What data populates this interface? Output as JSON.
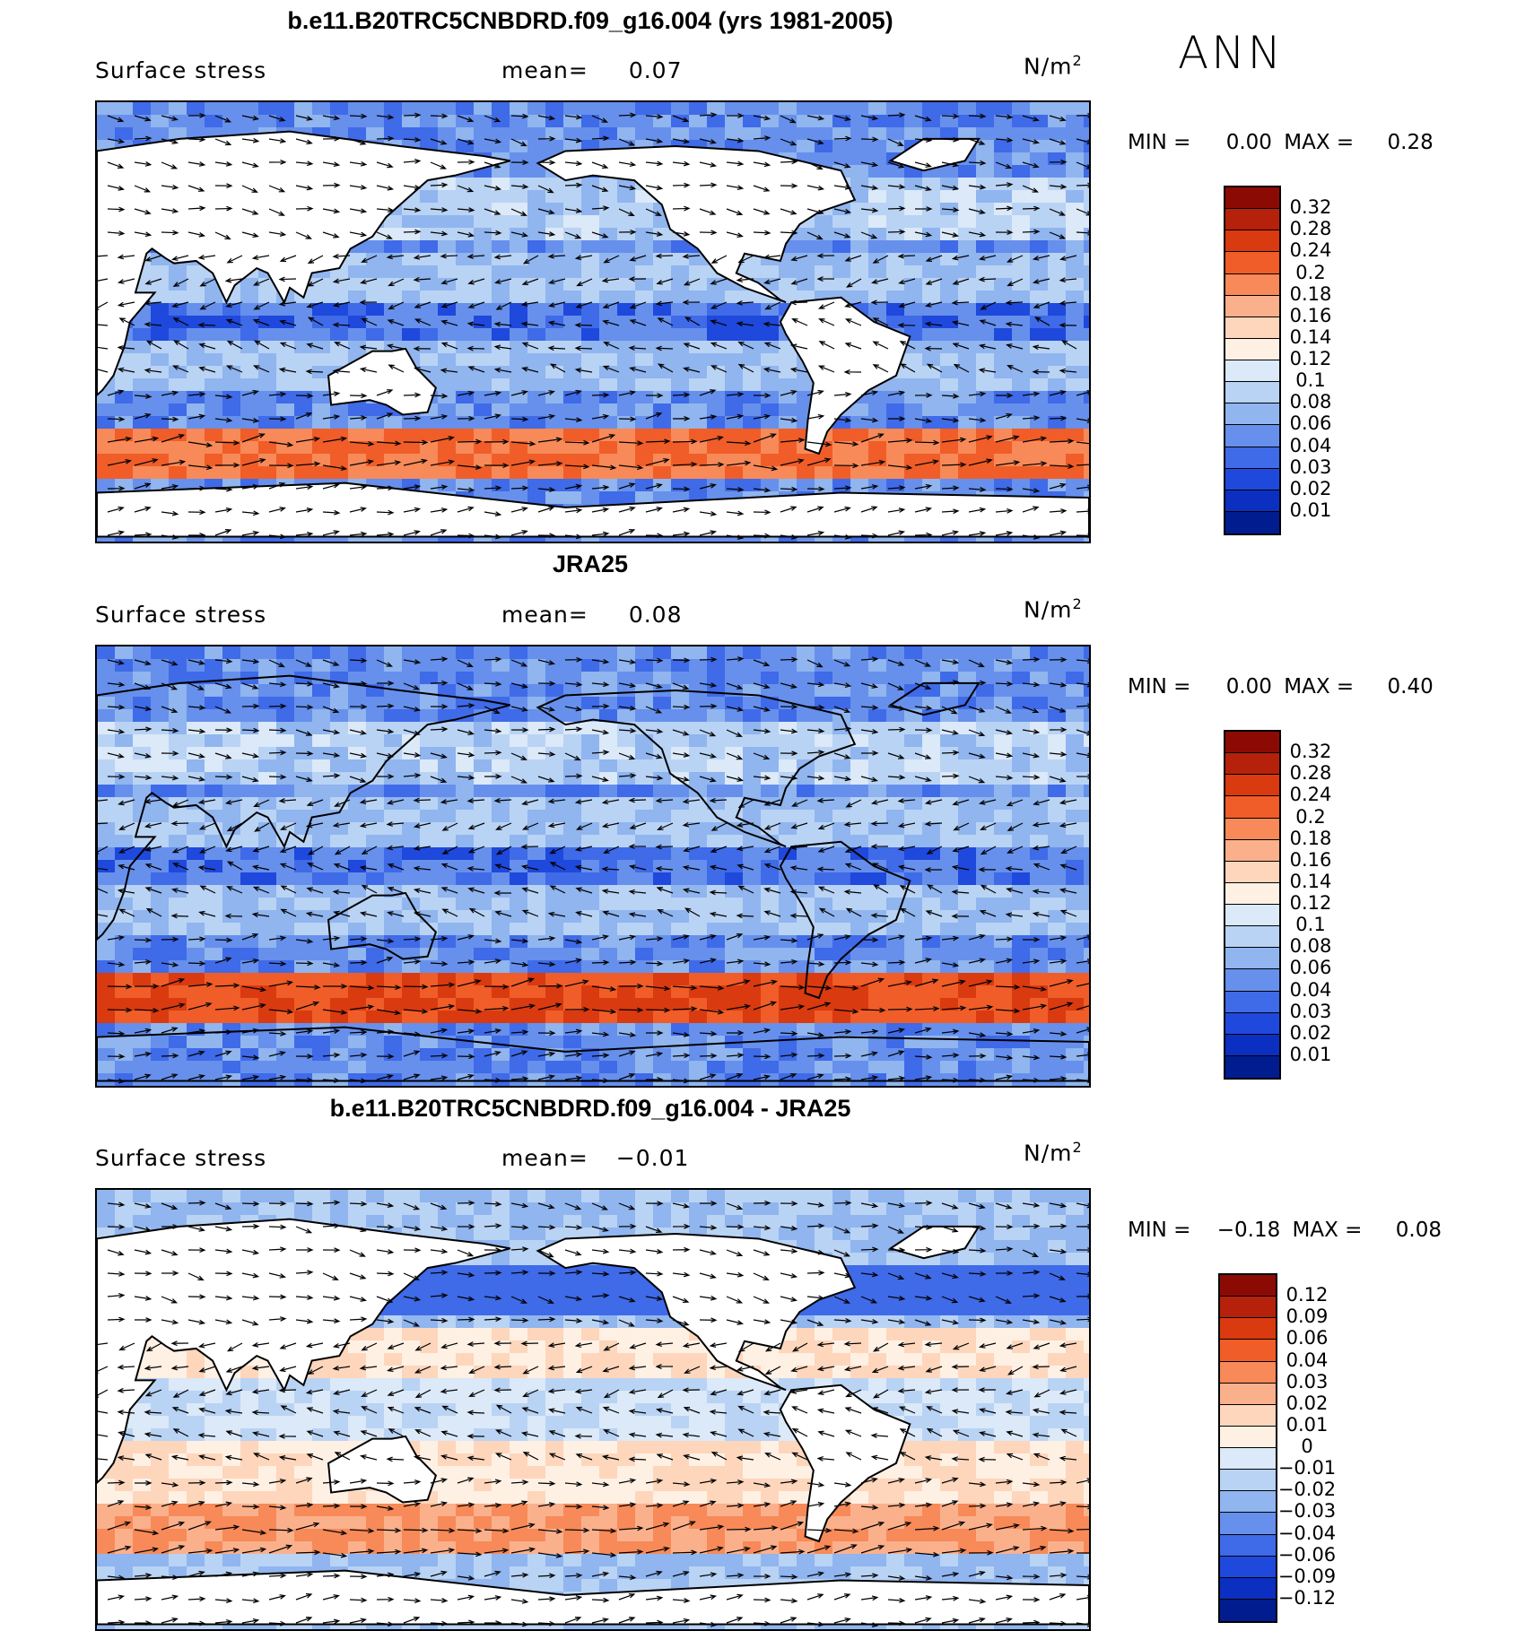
{
  "season": "ANN",
  "panels": [
    {
      "title": "b.e11.B20TRC5CNBDRD.f09_g16.004 (yrs 1981-2005)",
      "variable": "Surface stress",
      "mean_label": "mean=",
      "mean_value": "0.07",
      "units": "N/m",
      "units_exp": "2",
      "min_label": "MIN =",
      "min_value": "0.00",
      "max_label": "MAX =",
      "max_value": "0.28",
      "colorbar_labels": [
        "0.32",
        "0.28",
        "0.24",
        "0.2",
        "0.18",
        "0.16",
        "0.14",
        "0.12",
        "0.1",
        "0.08",
        "0.06",
        "0.04",
        "0.03",
        "0.02",
        "0.01"
      ],
      "colorbar_colors": [
        "#8b0a04",
        "#b5210b",
        "#d93a10",
        "#f05d28",
        "#f78a58",
        "#fbb08c",
        "#fdd6bc",
        "#fff0e4",
        "#dbe9f8",
        "#b9d3f4",
        "#90b5ef",
        "#6690ec",
        "#3f6ae8",
        "#1f48dc",
        "#0b2fc0",
        "#001c8f"
      ],
      "scheme": "pos"
    },
    {
      "title": "JRA25",
      "variable": "Surface stress",
      "mean_label": "mean=",
      "mean_value": "0.08",
      "units": "N/m",
      "units_exp": "2",
      "min_label": "MIN =",
      "min_value": "0.00",
      "max_label": "MAX =",
      "max_value": "0.40",
      "colorbar_labels": [
        "0.32",
        "0.28",
        "0.24",
        "0.2",
        "0.18",
        "0.16",
        "0.14",
        "0.12",
        "0.1",
        "0.08",
        "0.06",
        "0.04",
        "0.03",
        "0.02",
        "0.01"
      ],
      "colorbar_colors": [
        "#8b0a04",
        "#b5210b",
        "#d93a10",
        "#f05d28",
        "#f78a58",
        "#fbb08c",
        "#fdd6bc",
        "#fff0e4",
        "#dbe9f8",
        "#b9d3f4",
        "#90b5ef",
        "#6690ec",
        "#3f6ae8",
        "#1f48dc",
        "#0b2fc0",
        "#001c8f"
      ],
      "scheme": "pos"
    },
    {
      "title": "b.e11.B20TRC5CNBDRD.f09_g16.004 - JRA25",
      "variable": "Surface stress",
      "mean_label": "mean=",
      "mean_value": "−0.01",
      "units": "N/m",
      "units_exp": "2",
      "min_label": "MIN =",
      "min_value": "−0.18",
      "max_label": "MAX =",
      "max_value": "0.08",
      "colorbar_labels": [
        "0.12",
        "0.09",
        "0.06",
        "0.04",
        "0.03",
        "0.02",
        "0.01",
        "0",
        "−0.01",
        "−0.02",
        "−0.03",
        "−0.04",
        "−0.06",
        "−0.09",
        "−0.12"
      ],
      "colorbar_colors": [
        "#8b0a04",
        "#b5210b",
        "#d93a10",
        "#f05d28",
        "#f78a58",
        "#fbb08c",
        "#fdd6bc",
        "#fff0e4",
        "#dbe9f8",
        "#b9d3f4",
        "#90b5ef",
        "#6690ec",
        "#3f6ae8",
        "#1f48dc",
        "#0b2fc0",
        "#001c8f"
      ],
      "scheme": "diff"
    }
  ]
}
